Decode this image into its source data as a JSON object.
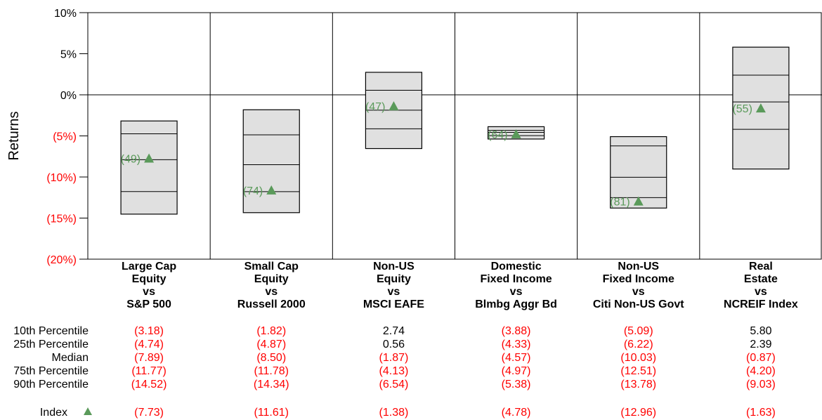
{
  "chart_data": {
    "type": "floating-bar",
    "ylabel": "Returns",
    "ylim": [
      -20,
      10
    ],
    "y_ticks": [
      {
        "value": 10,
        "label": "10%"
      },
      {
        "value": 5,
        "label": "5%"
      },
      {
        "value": 0,
        "label": "0%"
      },
      {
        "value": -5,
        "label": "(5%)"
      },
      {
        "value": -10,
        "label": "(10%)"
      },
      {
        "value": -15,
        "label": "(15%)"
      },
      {
        "value": -20,
        "label": "(20%)"
      }
    ],
    "categories": [
      {
        "lines": [
          "Large Cap",
          "Equity",
          "vs",
          "S&P 500"
        ]
      },
      {
        "lines": [
          "Small Cap",
          "Equity",
          "vs",
          "Russell 2000"
        ]
      },
      {
        "lines": [
          "Non-US",
          "Equity",
          "vs",
          "MSCI EAFE"
        ]
      },
      {
        "lines": [
          "Domestic",
          "Fixed Income",
          "vs",
          "Blmbg Aggr Bd"
        ]
      },
      {
        "lines": [
          "Non-US",
          "Fixed Income",
          "vs",
          "Citi Non-US Govt"
        ]
      },
      {
        "lines": [
          "Real",
          "Estate",
          "vs",
          "NCREIF Index"
        ]
      }
    ],
    "percentile_labels": [
      "10th Percentile",
      "25th Percentile",
      "Median",
      "75th Percentile",
      "90th Percentile"
    ],
    "index_label": "Index",
    "percentiles": [
      {
        "values": [
          -3.18,
          -4.74,
          -7.89,
          -11.77,
          -14.52
        ],
        "labels": [
          "(3.18)",
          "(4.74)",
          "(7.89)",
          "(11.77)",
          "(14.52)"
        ]
      },
      {
        "values": [
          -1.82,
          -4.87,
          -8.5,
          -11.78,
          -14.34
        ],
        "labels": [
          "(1.82)",
          "(4.87)",
          "(8.50)",
          "(11.78)",
          "(14.34)"
        ]
      },
      {
        "values": [
          2.74,
          0.56,
          -1.87,
          -4.13,
          -6.54
        ],
        "labels": [
          "2.74",
          "0.56",
          "(1.87)",
          "(4.13)",
          "(6.54)"
        ]
      },
      {
        "values": [
          -3.88,
          -4.33,
          -4.57,
          -4.97,
          -5.38
        ],
        "labels": [
          "(3.88)",
          "(4.33)",
          "(4.57)",
          "(4.97)",
          "(5.38)"
        ]
      },
      {
        "values": [
          -5.09,
          -6.22,
          -10.03,
          -12.51,
          -13.78
        ],
        "labels": [
          "(5.09)",
          "(6.22)",
          "(10.03)",
          "(12.51)",
          "(13.78)"
        ]
      },
      {
        "values": [
          5.8,
          2.39,
          -0.87,
          -4.2,
          -9.03
        ],
        "labels": [
          "5.80",
          "2.39",
          "(0.87)",
          "(4.20)",
          "(9.03)"
        ]
      }
    ],
    "index": [
      {
        "value": -7.73,
        "label": "(7.73)",
        "rank": "(49)"
      },
      {
        "value": -11.61,
        "label": "(11.61)",
        "rank": "(74)"
      },
      {
        "value": -1.38,
        "label": "(1.38)",
        "rank": "(47)"
      },
      {
        "value": -4.78,
        "label": "(4.78)",
        "rank": "(64)"
      },
      {
        "value": -12.96,
        "label": "(12.96)",
        "rank": "(81)"
      },
      {
        "value": -1.63,
        "label": "(1.63)",
        "rank": "(55)"
      }
    ],
    "colors": {
      "box_fill": "#e0e0e0",
      "line": "#000000",
      "negative": "#ff0000",
      "positive": "#000000",
      "index_marker": "#5a9a5a",
      "rank_text": "#5a9a5a"
    }
  }
}
